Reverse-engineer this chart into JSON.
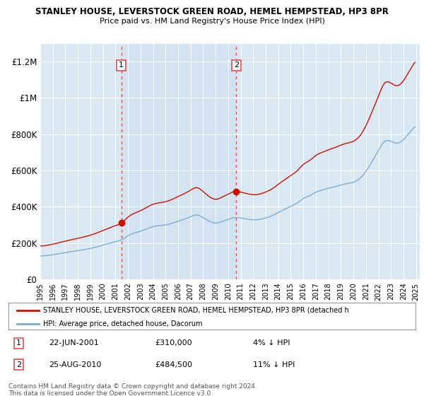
{
  "title1": "STANLEY HOUSE, LEVERSTOCK GREEN ROAD, HEMEL HEMPSTEAD, HP3 8PR",
  "title2": "Price paid vs. HM Land Registry's House Price Index (HPI)",
  "legend_label1": "STANLEY HOUSE, LEVERSTOCK GREEN ROAD, HEMEL HEMPSTEAD, HP3 8PR (detached h",
  "legend_label2": "HPI: Average price, detached house, Dacorum",
  "annotation1_date": "22-JUN-2001",
  "annotation1_price": "£310,000",
  "annotation1_hpi": "4% ↓ HPI",
  "annotation2_date": "25-AUG-2010",
  "annotation2_price": "£484,500",
  "annotation2_hpi": "11% ↓ HPI",
  "copyright": "Contains HM Land Registry data © Crown copyright and database right 2024.\nThis data is licensed under the Open Government Licence v3.0.",
  "hpi_color": "#7aaed6",
  "sale_color": "#cc1100",
  "dashed_line_color": "#e05050",
  "plot_bg_color": "#dae8f4",
  "highlight_bg_color": "#cfe0f0",
  "ylim": [
    0,
    1300000
  ],
  "yticks": [
    0,
    200000,
    400000,
    600000,
    800000,
    1000000,
    1200000
  ],
  "ytick_labels": [
    "£0",
    "£200K",
    "£400K",
    "£600K",
    "£800K",
    "£1M",
    "£1.2M"
  ],
  "sale1_year": 2001.47,
  "sale1_value": 310000,
  "sale2_year": 2010.65,
  "sale2_value": 484500,
  "sale_marker_size": 6
}
